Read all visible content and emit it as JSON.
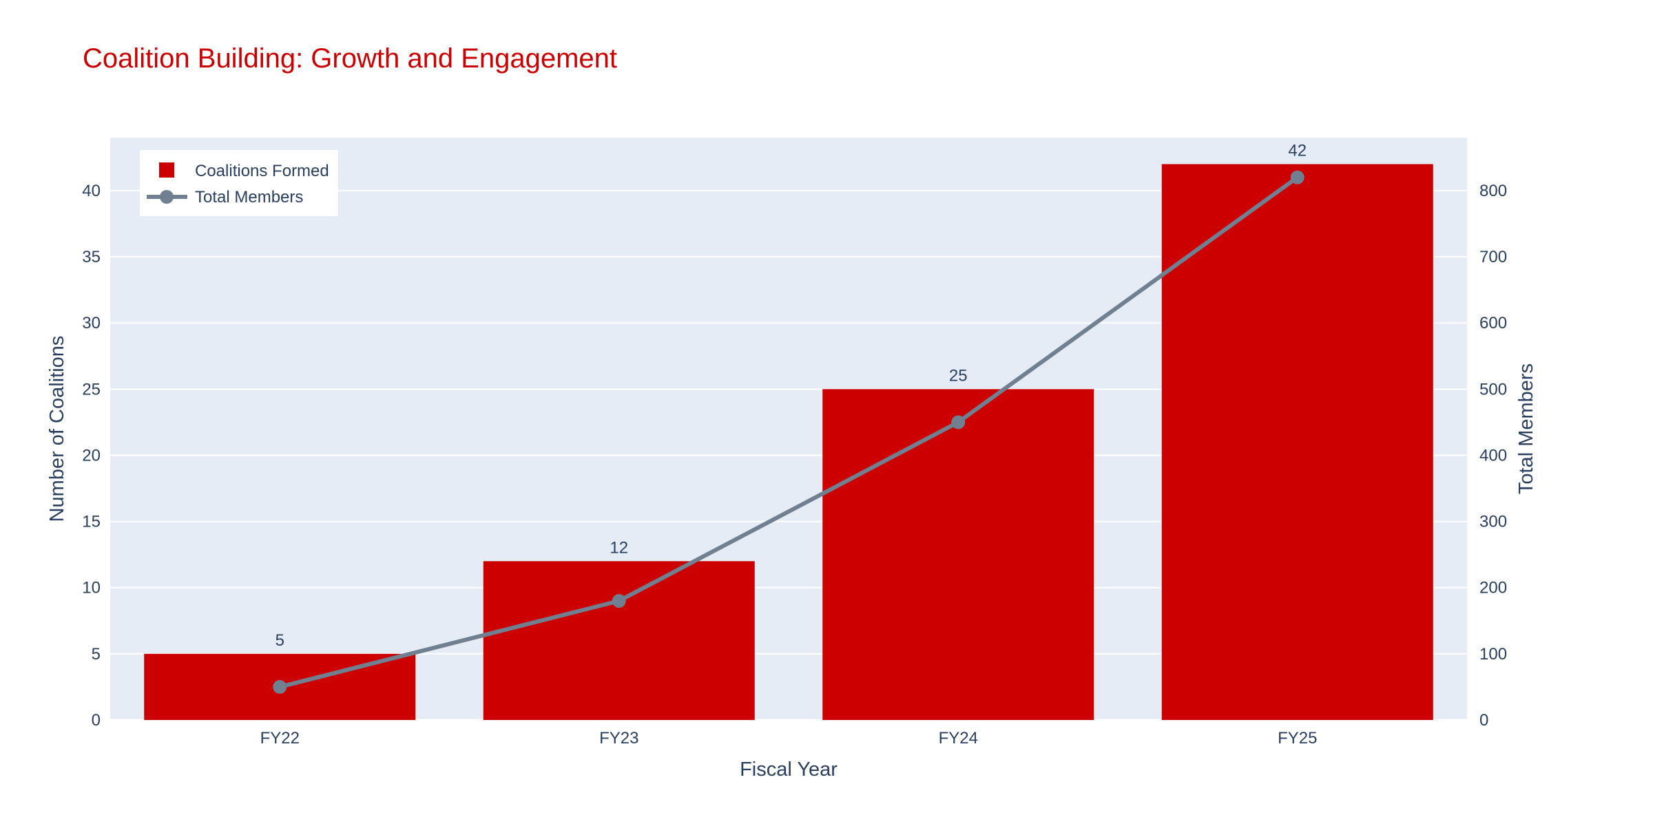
{
  "colors": {
    "title": "#cc0000",
    "plot_bg": "#e5ecf6",
    "grid": "#ffffff",
    "bar": "#cc0000",
    "line": "#708090",
    "text": "#2a3f5f"
  },
  "chart_data": {
    "type": "bar",
    "title": "Coalition Building: Growth and Engagement",
    "xlabel": "Fiscal Year",
    "ylabel": "Number of Coalitions",
    "y2label": "Total Members",
    "categories": [
      "FY22",
      "FY23",
      "FY24",
      "FY25"
    ],
    "ylim": [
      0,
      44
    ],
    "y2lim": [
      0,
      880
    ],
    "yticks": [
      0,
      5,
      10,
      15,
      20,
      25,
      30,
      35,
      40
    ],
    "y2ticks": [
      0,
      100,
      200,
      300,
      400,
      500,
      600,
      700,
      800
    ],
    "grid": true,
    "legend_position": "top-left",
    "series": [
      {
        "name": "Coalitions Formed",
        "type": "bar",
        "axis": "left",
        "values": [
          5,
          12,
          25,
          42
        ],
        "labels": [
          "5",
          "12",
          "25",
          "42"
        ]
      },
      {
        "name": "Total Members",
        "type": "line",
        "axis": "right",
        "values": [
          50,
          180,
          450,
          820
        ]
      }
    ]
  }
}
